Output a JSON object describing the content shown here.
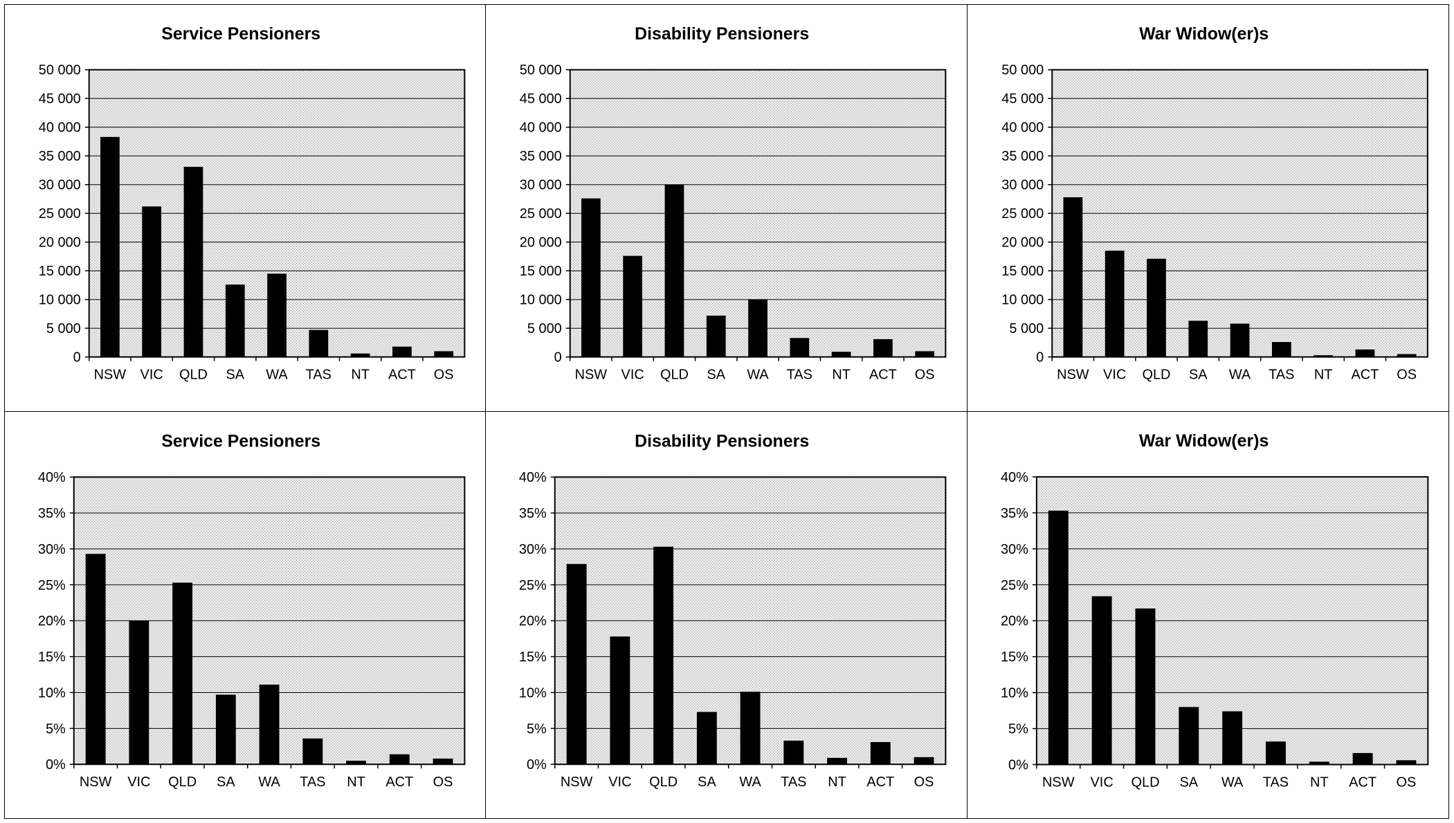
{
  "chart_data": [
    {
      "type": "bar",
      "title": "Service Pensioners",
      "categories": [
        "NSW",
        "VIC",
        "QLD",
        "SA",
        "WA",
        "TAS",
        "NT",
        "ACT",
        "OS"
      ],
      "values": [
        38300,
        26200,
        33100,
        12600,
        14500,
        4700,
        600,
        1800,
        1000
      ],
      "ylim": [
        0,
        50000
      ],
      "yticks": [
        "0",
        "5 000",
        "10 000",
        "15 000",
        "20 000",
        "25 000",
        "30 000",
        "35 000",
        "40 000",
        "45 000",
        "50 000"
      ],
      "grid": true,
      "bar_color": "#000000"
    },
    {
      "type": "bar",
      "title": "Disability Pensioners",
      "categories": [
        "NSW",
        "VIC",
        "QLD",
        "SA",
        "WA",
        "TAS",
        "NT",
        "ACT",
        "OS"
      ],
      "values": [
        27600,
        17600,
        30000,
        7200,
        10000,
        3300,
        900,
        3100,
        1000
      ],
      "ylim": [
        0,
        50000
      ],
      "yticks": [
        "0",
        "5 000",
        "10 000",
        "15 000",
        "20 000",
        "25 000",
        "30 000",
        "35 000",
        "40 000",
        "45 000",
        "50 000"
      ],
      "grid": true,
      "bar_color": "#000000"
    },
    {
      "type": "bar",
      "title": "War Widow(er)s",
      "categories": [
        "NSW",
        "VIC",
        "QLD",
        "SA",
        "WA",
        "TAS",
        "NT",
        "ACT",
        "OS"
      ],
      "values": [
        27800,
        18500,
        17100,
        6300,
        5800,
        2600,
        300,
        1300,
        500
      ],
      "ylim": [
        0,
        50000
      ],
      "yticks": [
        "0",
        "5 000",
        "10 000",
        "15 000",
        "20 000",
        "25 000",
        "30 000",
        "35 000",
        "40 000",
        "45 000",
        "50 000"
      ],
      "grid": true,
      "bar_color": "#000000"
    },
    {
      "type": "bar",
      "title": "Service Pensioners",
      "categories": [
        "NSW",
        "VIC",
        "QLD",
        "SA",
        "WA",
        "TAS",
        "NT",
        "ACT",
        "OS"
      ],
      "values": [
        29.3,
        20.0,
        25.3,
        9.7,
        11.1,
        3.6,
        0.5,
        1.4,
        0.8
      ],
      "ylim": [
        0,
        40
      ],
      "yticks": [
        "0%",
        "5%",
        "10%",
        "15%",
        "20%",
        "25%",
        "30%",
        "35%",
        "40%"
      ],
      "grid": true,
      "bar_color": "#000000"
    },
    {
      "type": "bar",
      "title": "Disability Pensioners",
      "categories": [
        "NSW",
        "VIC",
        "QLD",
        "SA",
        "WA",
        "TAS",
        "NT",
        "ACT",
        "OS"
      ],
      "values": [
        27.9,
        17.8,
        30.3,
        7.3,
        10.1,
        3.3,
        0.9,
        3.1,
        1.0
      ],
      "ylim": [
        0,
        40
      ],
      "yticks": [
        "0%",
        "5%",
        "10%",
        "15%",
        "20%",
        "25%",
        "30%",
        "35%",
        "40%"
      ],
      "grid": true,
      "bar_color": "#000000"
    },
    {
      "type": "bar",
      "title": "War Widow(er)s",
      "categories": [
        "NSW",
        "VIC",
        "QLD",
        "SA",
        "WA",
        "TAS",
        "NT",
        "ACT",
        "OS"
      ],
      "values": [
        35.3,
        23.4,
        21.7,
        8.0,
        7.4,
        3.2,
        0.4,
        1.6,
        0.6
      ],
      "ylim": [
        0,
        40
      ],
      "yticks": [
        "0%",
        "5%",
        "10%",
        "15%",
        "20%",
        "25%",
        "30%",
        "35%",
        "40%"
      ],
      "grid": true,
      "bar_color": "#000000"
    }
  ]
}
